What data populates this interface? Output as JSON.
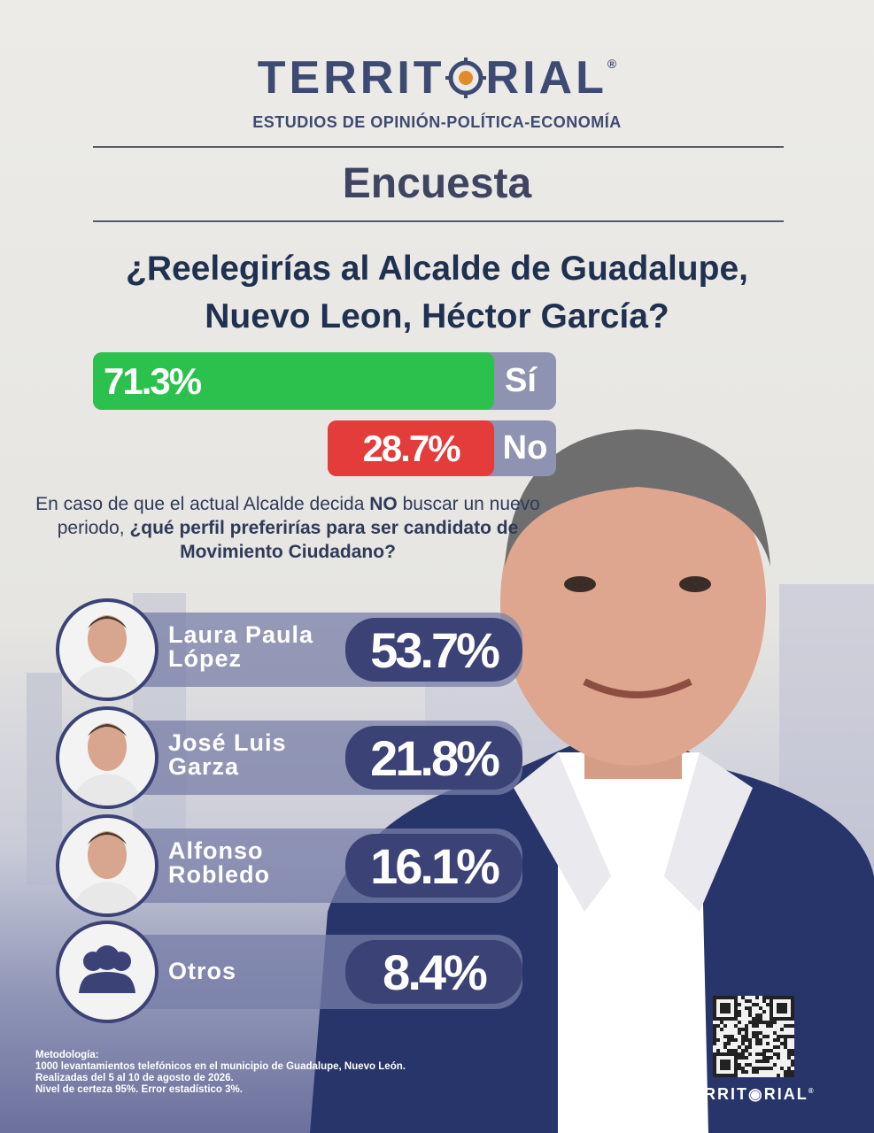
{
  "header": {
    "brand_left": "TERRIT",
    "brand_right": "RIAL",
    "registered": "®",
    "tagline": "ESTUDIOS DE OPINIÓN-POLÍTICA-ECONOMÍA"
  },
  "section": "Encuesta",
  "question": {
    "line1": "¿Reelegirías al Alcalde de Guadalupe,",
    "line2": "Nuevo Leon, Héctor García?"
  },
  "reelection": [
    {
      "label": "Sí",
      "value": "71.3%"
    },
    {
      "label": "No",
      "value": "28.7%"
    }
  ],
  "followup": {
    "parts": [
      "En caso de que el actual Alcalde decida ",
      "NO",
      " buscar un nuevo periodo, ",
      "¿qué perfil preferirías para ser candidato de Movimiento Ciudadano?"
    ]
  },
  "candidates": [
    {
      "name_line1": "Laura Paula",
      "name_line2": "López",
      "value": "53.7%"
    },
    {
      "name_line1": "José Luis",
      "name_line2": "Garza",
      "value": "21.8%"
    },
    {
      "name_line1": "Alfonso",
      "name_line2": "Robledo",
      "value": "16.1%"
    },
    {
      "name_line1": "Otros",
      "value": "8.4%"
    }
  ],
  "methodology": {
    "title": "Metodología:",
    "lines": [
      "1000 levantamientos telefónicos en el municipio de Guadalupe, Nuevo León.",
      "Realizadas del 5 al 10 de agosto de 2026.",
      "Nivel de certeza 95%. Error estadístico 3%."
    ]
  },
  "footer": {
    "brand_left": "TERRIT",
    "brand_right": "RIAL",
    "registered": "®"
  }
}
